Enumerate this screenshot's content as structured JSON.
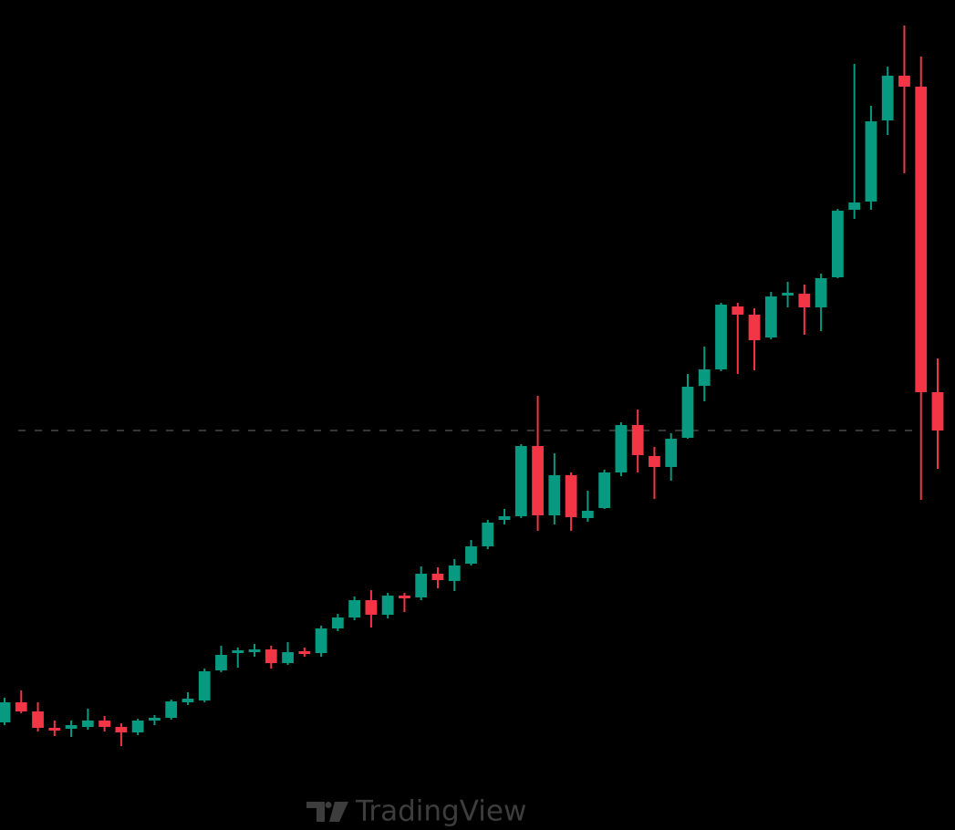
{
  "chart_data": {
    "type": "candlestick",
    "open": [
      11.8,
      14.0,
      13.0,
      11.2,
      11.1,
      11.3,
      12.0,
      11.3,
      10.7,
      12.0,
      12.3,
      14.0,
      14.2,
      17.5,
      19.4,
      19.5,
      19.8,
      18.3,
      19.6,
      19.4,
      22.1,
      23.3,
      25.2,
      23.6,
      25.7,
      25.5,
      28.1,
      27.3,
      29.2,
      31.1,
      34.0,
      34.4,
      42.1,
      34.5,
      38.9,
      34.2,
      35.3,
      39.2,
      44.4,
      41.0,
      39.8,
      43.0,
      48.7,
      50.5,
      57.4,
      56.5,
      54.0,
      58.6,
      58.8,
      57.3,
      60.6,
      68.0,
      68.9,
      77.8,
      82.7,
      81.5,
      48.0
    ],
    "high": [
      14.5,
      15.3,
      14.0,
      12.0,
      12.0,
      13.3,
      12.5,
      11.7,
      12.2,
      12.6,
      14.3,
      15.1,
      17.7,
      20.2,
      20.0,
      20.4,
      20.2,
      20.6,
      20.0,
      22.4,
      23.7,
      25.6,
      26.3,
      26.0,
      26.0,
      28.9,
      28.8,
      29.7,
      31.8,
      34.0,
      35.2,
      42.3,
      47.6,
      41.3,
      39.2,
      37.2,
      39.5,
      44.7,
      46.1,
      42.0,
      43.5,
      50.0,
      53.0,
      57.8,
      57.8,
      57.2,
      59.0,
      60.1,
      59.8,
      61.0,
      68.1,
      84.0,
      79.4,
      83.7,
      88.2,
      84.8,
      51.7
    ],
    "low": [
      11.5,
      12.8,
      10.8,
      10.3,
      10.2,
      11.0,
      10.8,
      9.2,
      10.4,
      11.5,
      12.1,
      13.7,
      14.0,
      17.3,
      17.8,
      19.0,
      17.7,
      18.1,
      19.0,
      19.0,
      21.8,
      23.0,
      22.2,
      23.2,
      23.9,
      25.2,
      26.5,
      26.2,
      29.0,
      30.8,
      33.5,
      34.2,
      32.8,
      33.5,
      32.8,
      33.8,
      35.2,
      38.8,
      39.2,
      36.3,
      38.3,
      42.9,
      47.0,
      50.3,
      50.0,
      50.4,
      53.8,
      57.3,
      54.3,
      54.7,
      60.5,
      67.0,
      68.0,
      76.2,
      72.0,
      36.2,
      39.6
    ],
    "close": [
      14.0,
      13.0,
      11.2,
      10.9,
      11.5,
      12.0,
      11.3,
      10.7,
      12.0,
      12.3,
      14.1,
      14.4,
      17.4,
      19.2,
      19.7,
      19.8,
      18.3,
      19.5,
      19.3,
      22.1,
      23.3,
      25.2,
      23.6,
      25.7,
      25.4,
      28.1,
      27.4,
      29.0,
      31.1,
      33.7,
      34.4,
      42.1,
      34.5,
      38.9,
      34.3,
      35.0,
      39.2,
      44.4,
      41.1,
      39.8,
      42.9,
      48.6,
      50.5,
      57.6,
      56.5,
      53.7,
      58.5,
      58.9,
      57.3,
      60.5,
      67.9,
      68.8,
      77.7,
      82.7,
      81.5,
      48.0,
      43.8
    ],
    "ylim": [
      0,
      91
    ],
    "up_color": "#089981",
    "down_color": "#f23645",
    "last_price_line": true,
    "watermark": "TradingView"
  }
}
